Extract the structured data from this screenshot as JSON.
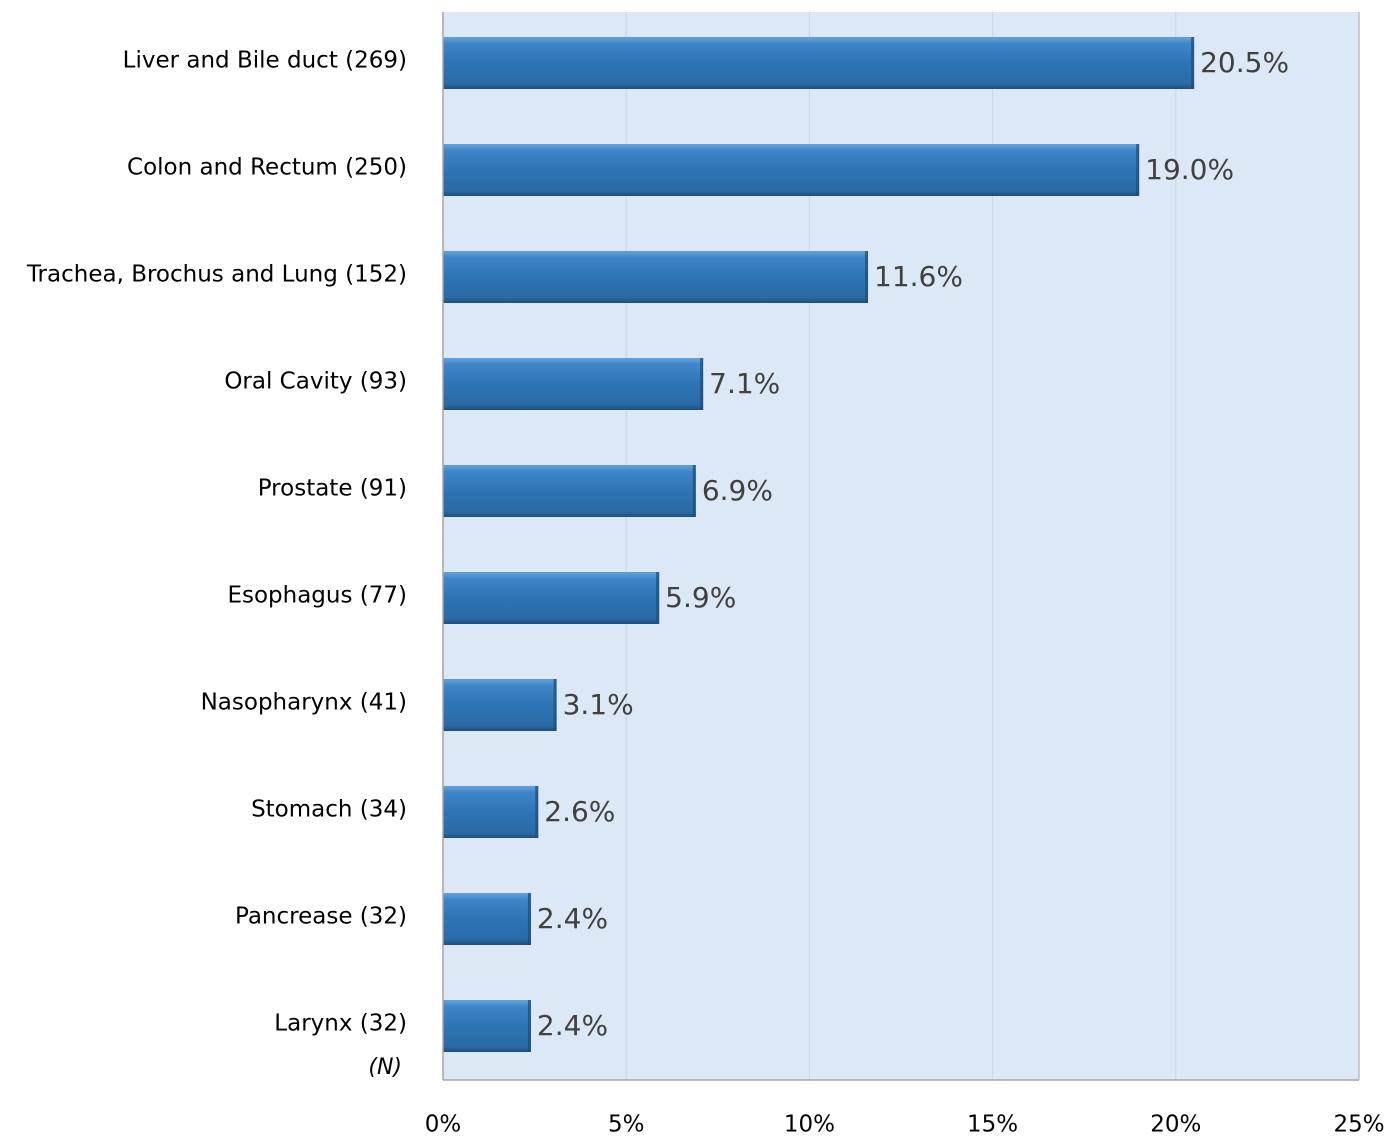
{
  "chart_data": {
    "type": "bar",
    "orientation": "horizontal",
    "title": "",
    "xlabel": "",
    "ylabel": "",
    "categories": [
      "Liver and Bile duct (269)",
      "Colon and Rectum (250)",
      "Trachea, Brochus and Lung (152)",
      "Oral Cavity (93)",
      "Prostate (91)",
      "Esophagus (77)",
      "Nasopharynx (41)",
      "Stomach (34)",
      "Pancrease (32)",
      "Larynx (32)"
    ],
    "values": [
      20.5,
      19.0,
      11.6,
      7.1,
      6.9,
      5.9,
      3.1,
      2.6,
      2.4,
      2.4
    ],
    "value_labels": [
      "20.5%",
      "19.0%",
      "11.6%",
      "7.1%",
      "6.9%",
      "5.9%",
      "3.1%",
      "2.6%",
      "2.4%",
      "2.4%"
    ],
    "x_ticks": [
      0,
      5,
      10,
      15,
      20,
      25
    ],
    "x_tick_labels": [
      "0%",
      "5%",
      "10%",
      "15%",
      "20%",
      "25%"
    ],
    "xlim": [
      0,
      25
    ],
    "axis_note": "(N)",
    "grid": true,
    "legend": "none",
    "colors": {
      "bar": "#2e75b6",
      "bar_highlight": "#5b9bd5",
      "bar_shadow": "#1f4e79",
      "plot_background": "#dce8f5",
      "gridline": "#c8d6e6",
      "axis": "#a6a6a6",
      "value_label": "#404040"
    }
  }
}
